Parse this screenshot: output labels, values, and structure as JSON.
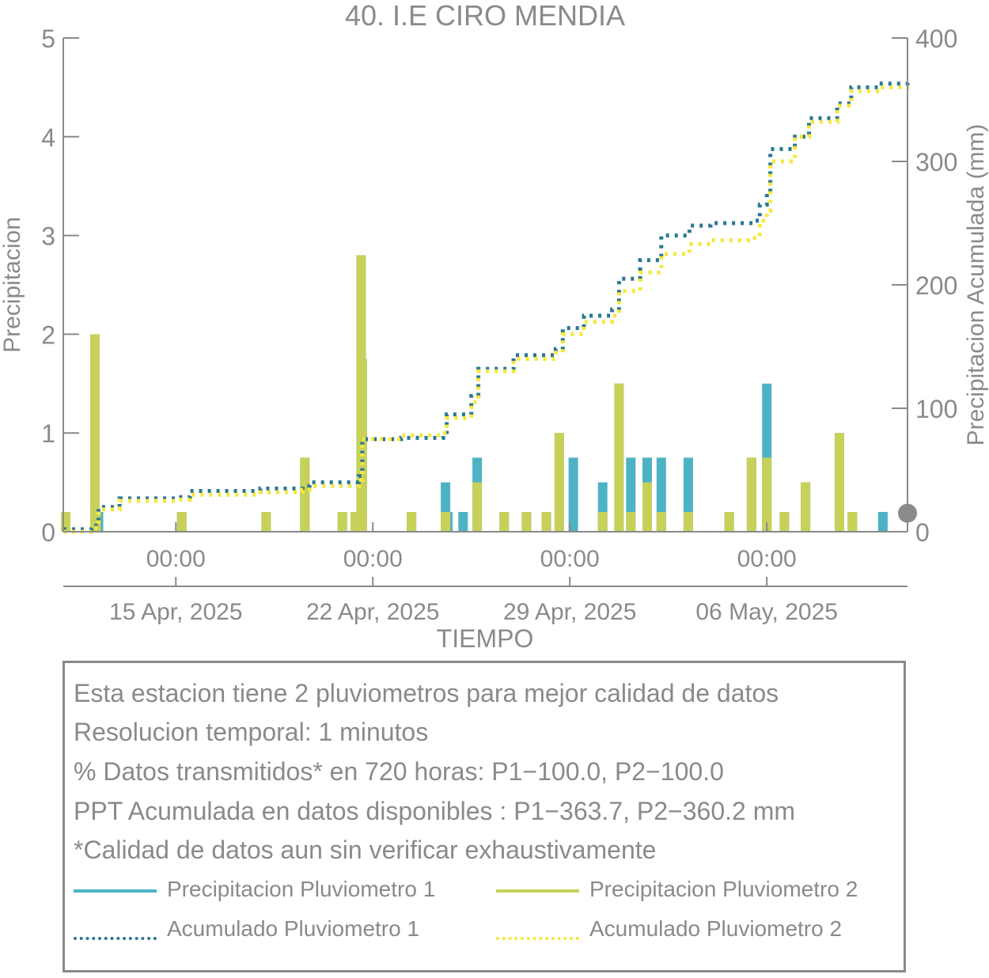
{
  "chart_data": {
    "type": "bar+line",
    "title": "40. I.E CIRO MENDIA",
    "xlabel": "TIEMPO",
    "ylabel_left": "Precipitacion",
    "ylabel_right": "Precipitacion Acumulada (mm)",
    "ylim_left": [
      0,
      5
    ],
    "ylim_right": [
      0,
      400
    ],
    "yticks_left": [
      "0",
      "1",
      "2",
      "3",
      "4",
      "5"
    ],
    "yticks_right": [
      "0",
      "100",
      "200",
      "300",
      "400"
    ],
    "x_range_days": [
      "2025-04-11T00:00",
      "2025-05-11T00:00"
    ],
    "time_ticks": [
      "00:00",
      "00:00",
      "00:00",
      "00:00"
    ],
    "date_ticks": [
      "15 Apr, 2025",
      "22 Apr, 2025",
      "29 Apr, 2025",
      "06 May, 2025"
    ],
    "date_tick_days": [
      "2025-04-15",
      "2025-04-22",
      "2025-04-29",
      "2025-05-06"
    ],
    "series": [
      {
        "name": "Precipitacion Pluviometro 1",
        "kind": "bar",
        "axis": "left",
        "color": "#4db3c4",
        "points": [
          [
            "2025-04-11T02:00",
            0.2
          ],
          [
            "2025-04-12T03:00",
            1.0
          ],
          [
            "2025-04-12T04:00",
            0.2
          ],
          [
            "2025-04-12T06:00",
            0.2
          ],
          [
            "2025-04-15T05:00",
            0.2
          ],
          [
            "2025-04-18T05:00",
            0.2
          ],
          [
            "2025-04-19T14:00",
            0.75
          ],
          [
            "2025-04-20T22:00",
            0.2
          ],
          [
            "2025-04-21T09:00",
            0.2
          ],
          [
            "2025-04-21T14:00",
            2.8
          ],
          [
            "2025-04-21T15:00",
            1.75
          ],
          [
            "2025-04-23T09:00",
            0.2
          ],
          [
            "2025-04-24T14:00",
            0.5
          ],
          [
            "2025-04-24T16:00",
            0.2
          ],
          [
            "2025-04-25T05:00",
            0.2
          ],
          [
            "2025-04-25T17:00",
            0.75
          ],
          [
            "2025-04-26T16:00",
            0.2
          ],
          [
            "2025-04-27T11:00",
            0.2
          ],
          [
            "2025-04-28T04:00",
            0.2
          ],
          [
            "2025-04-28T15:00",
            1.0
          ],
          [
            "2025-04-29T03:00",
            0.75
          ],
          [
            "2025-04-30T04:00",
            0.5
          ],
          [
            "2025-04-30T18:00",
            1.5
          ],
          [
            "2025-05-01T04:00",
            0.75
          ],
          [
            "2025-05-01T18:00",
            0.75
          ],
          [
            "2025-05-02T06:00",
            0.75
          ],
          [
            "2025-05-03T05:00",
            0.75
          ],
          [
            "2025-05-04T16:00",
            0.2
          ],
          [
            "2025-05-05T11:00",
            0.75
          ],
          [
            "2025-05-06T00:00",
            1.5
          ],
          [
            "2025-05-06T15:00",
            0.2
          ],
          [
            "2025-05-07T09:00",
            0.5
          ],
          [
            "2025-05-08T14:00",
            1.0
          ],
          [
            "2025-05-09T01:00",
            0.2
          ],
          [
            "2025-05-10T03:00",
            0.2
          ]
        ]
      },
      {
        "name": "Precipitacion Pluviometro 2",
        "kind": "bar",
        "axis": "left",
        "color": "#c7d15a",
        "points": [
          [
            "2025-04-11T02:00",
            0.2
          ],
          [
            "2025-04-12T03:00",
            2.0
          ],
          [
            "2025-04-12T04:00",
            0.2
          ],
          [
            "2025-04-15T05:00",
            0.2
          ],
          [
            "2025-04-18T05:00",
            0.2
          ],
          [
            "2025-04-19T14:00",
            0.75
          ],
          [
            "2025-04-20T22:00",
            0.2
          ],
          [
            "2025-04-21T09:00",
            0.2
          ],
          [
            "2025-04-21T14:00",
            2.8
          ],
          [
            "2025-04-21T15:00",
            1.75
          ],
          [
            "2025-04-23T09:00",
            0.2
          ],
          [
            "2025-04-24T14:00",
            0.2
          ],
          [
            "2025-04-25T17:00",
            0.5
          ],
          [
            "2025-04-26T16:00",
            0.2
          ],
          [
            "2025-04-27T11:00",
            0.2
          ],
          [
            "2025-04-28T04:00",
            0.2
          ],
          [
            "2025-04-28T15:00",
            1.0
          ],
          [
            "2025-04-30T04:00",
            0.2
          ],
          [
            "2025-04-30T18:00",
            1.5
          ],
          [
            "2025-05-01T04:00",
            0.2
          ],
          [
            "2025-05-01T18:00",
            0.5
          ],
          [
            "2025-05-02T06:00",
            0.2
          ],
          [
            "2025-05-03T05:00",
            0.2
          ],
          [
            "2025-05-04T16:00",
            0.2
          ],
          [
            "2025-05-05T11:00",
            0.75
          ],
          [
            "2025-05-06T00:00",
            0.75
          ],
          [
            "2025-05-06T15:00",
            0.2
          ],
          [
            "2025-05-07T09:00",
            0.5
          ],
          [
            "2025-05-08T14:00",
            1.0
          ],
          [
            "2025-05-09T01:00",
            0.2
          ]
        ]
      },
      {
        "name": "Acumulado Pluviometro 1",
        "kind": "line",
        "axis": "right",
        "style": "dotted",
        "color": "#2b7791",
        "points": [
          [
            "2025-04-11T00:00",
            2
          ],
          [
            "2025-04-12T00:00",
            5
          ],
          [
            "2025-04-12T06:00",
            20
          ],
          [
            "2025-04-13T00:00",
            27
          ],
          [
            "2025-04-15T00:00",
            28
          ],
          [
            "2025-04-15T12:00",
            33
          ],
          [
            "2025-04-18T00:00",
            35
          ],
          [
            "2025-04-19T12:00",
            37
          ],
          [
            "2025-04-19T18:00",
            40
          ],
          [
            "2025-04-21T12:00",
            45
          ],
          [
            "2025-04-21T15:00",
            75
          ],
          [
            "2025-04-23T00:00",
            76
          ],
          [
            "2025-04-24T12:00",
            78
          ],
          [
            "2025-04-24T15:00",
            95
          ],
          [
            "2025-04-25T12:00",
            110
          ],
          [
            "2025-04-25T18:00",
            132
          ],
          [
            "2025-04-27T00:00",
            143
          ],
          [
            "2025-04-28T12:00",
            148
          ],
          [
            "2025-04-28T18:00",
            165
          ],
          [
            "2025-04-29T12:00",
            175
          ],
          [
            "2025-04-30T12:00",
            180
          ],
          [
            "2025-04-30T18:00",
            205
          ],
          [
            "2025-05-01T12:00",
            220
          ],
          [
            "2025-05-02T06:00",
            240
          ],
          [
            "2025-05-03T06:00",
            248
          ],
          [
            "2025-05-04T00:00",
            250
          ],
          [
            "2025-05-05T12:00",
            252
          ],
          [
            "2025-05-05T18:00",
            265
          ],
          [
            "2025-05-06T00:00",
            275
          ],
          [
            "2025-05-06T03:00",
            310
          ],
          [
            "2025-05-07T00:00",
            320
          ],
          [
            "2025-05-07T12:00",
            335
          ],
          [
            "2025-05-08T12:00",
            347
          ],
          [
            "2025-05-09T00:00",
            360
          ],
          [
            "2025-05-10T00:00",
            363
          ],
          [
            "2025-05-11T00:00",
            363.7
          ]
        ]
      },
      {
        "name": "Acumulado Pluviometro 2",
        "kind": "line",
        "axis": "right",
        "style": "dotted",
        "color": "#f5e83c",
        "points": [
          [
            "2025-04-11T00:00",
            0
          ],
          [
            "2025-04-12T00:00",
            3
          ],
          [
            "2025-04-12T06:00",
            18
          ],
          [
            "2025-04-13T00:00",
            25
          ],
          [
            "2025-04-15T00:00",
            26
          ],
          [
            "2025-04-15T12:00",
            30
          ],
          [
            "2025-04-18T00:00",
            32
          ],
          [
            "2025-04-19T12:00",
            34
          ],
          [
            "2025-04-19T18:00",
            37
          ],
          [
            "2025-04-21T12:00",
            42
          ],
          [
            "2025-04-21T15:00",
            75
          ],
          [
            "2025-04-23T00:00",
            78
          ],
          [
            "2025-04-24T12:00",
            80
          ],
          [
            "2025-04-24T15:00",
            92
          ],
          [
            "2025-04-25T12:00",
            105
          ],
          [
            "2025-04-25T18:00",
            130
          ],
          [
            "2025-04-27T00:00",
            140
          ],
          [
            "2025-04-28T12:00",
            145
          ],
          [
            "2025-04-28T18:00",
            160
          ],
          [
            "2025-04-29T12:00",
            170
          ],
          [
            "2025-04-30T12:00",
            175
          ],
          [
            "2025-04-30T18:00",
            195
          ],
          [
            "2025-05-01T12:00",
            210
          ],
          [
            "2025-05-02T06:00",
            225
          ],
          [
            "2025-05-03T06:00",
            233
          ],
          [
            "2025-05-04T00:00",
            236
          ],
          [
            "2025-05-05T12:00",
            238
          ],
          [
            "2025-05-05T18:00",
            252
          ],
          [
            "2025-05-06T00:00",
            260
          ],
          [
            "2025-05-06T03:00",
            300
          ],
          [
            "2025-05-07T00:00",
            320
          ],
          [
            "2025-05-07T12:00",
            332
          ],
          [
            "2025-05-08T12:00",
            345
          ],
          [
            "2025-05-09T00:00",
            357
          ],
          [
            "2025-05-10T00:00",
            360
          ],
          [
            "2025-05-11T00:00",
            360.2
          ]
        ]
      }
    ],
    "end_marker": {
      "axis": "right",
      "value": 15,
      "color": "#8a8a8a"
    },
    "legend_position": "bottom",
    "grid": false
  },
  "notes": [
    "Esta estacion tiene 2 pluviometros para mejor calidad de datos",
    "Resolucion temporal: 1 minutos",
    "% Datos transmitidos* en 720 horas: P1−100.0, P2−100.0",
    "PPT Acumulada en datos disponibles : P1−363.7, P2−360.2 mm",
    "*Calidad de datos aun sin verificar exhaustivamente"
  ],
  "legend": [
    {
      "label": "Precipitacion Pluviometro 1",
      "style": "solid",
      "color": "#4db3c4"
    },
    {
      "label": "Precipitacion Pluviometro 2",
      "style": "solid",
      "color": "#c7d15a"
    },
    {
      "label": "Acumulado Pluviometro 1",
      "style": "dotted",
      "color": "#2b7791"
    },
    {
      "label": "Acumulado Pluviometro 2",
      "style": "dotted",
      "color": "#f5e83c"
    }
  ]
}
